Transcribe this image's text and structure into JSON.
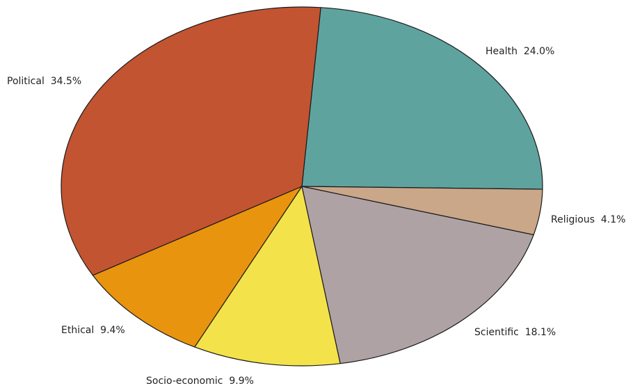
{
  "chart_data": {
    "type": "pie",
    "title": "",
    "slices": [
      {
        "label": "Health",
        "value": 24.0,
        "display": "Health  24.0%",
        "color": "#5fa39f"
      },
      {
        "label": "Religious",
        "value": 4.1,
        "display": "Religious  4.1%",
        "color": "#c9a788"
      },
      {
        "label": "Scientific",
        "value": 18.1,
        "display": "Scientific  18.1%",
        "color": "#afa2a5"
      },
      {
        "label": "Socio-economic",
        "value": 9.9,
        "display": "Socio-economic  9.9%",
        "color": "#f4e24a"
      },
      {
        "label": "Ethical",
        "value": 9.4,
        "display": "Ethical  9.4%",
        "color": "#e8940f"
      },
      {
        "label": "Political",
        "value": 34.5,
        "display": "Political  34.5%",
        "color": "#c35431"
      }
    ],
    "legend": "none",
    "labels": "outside"
  }
}
